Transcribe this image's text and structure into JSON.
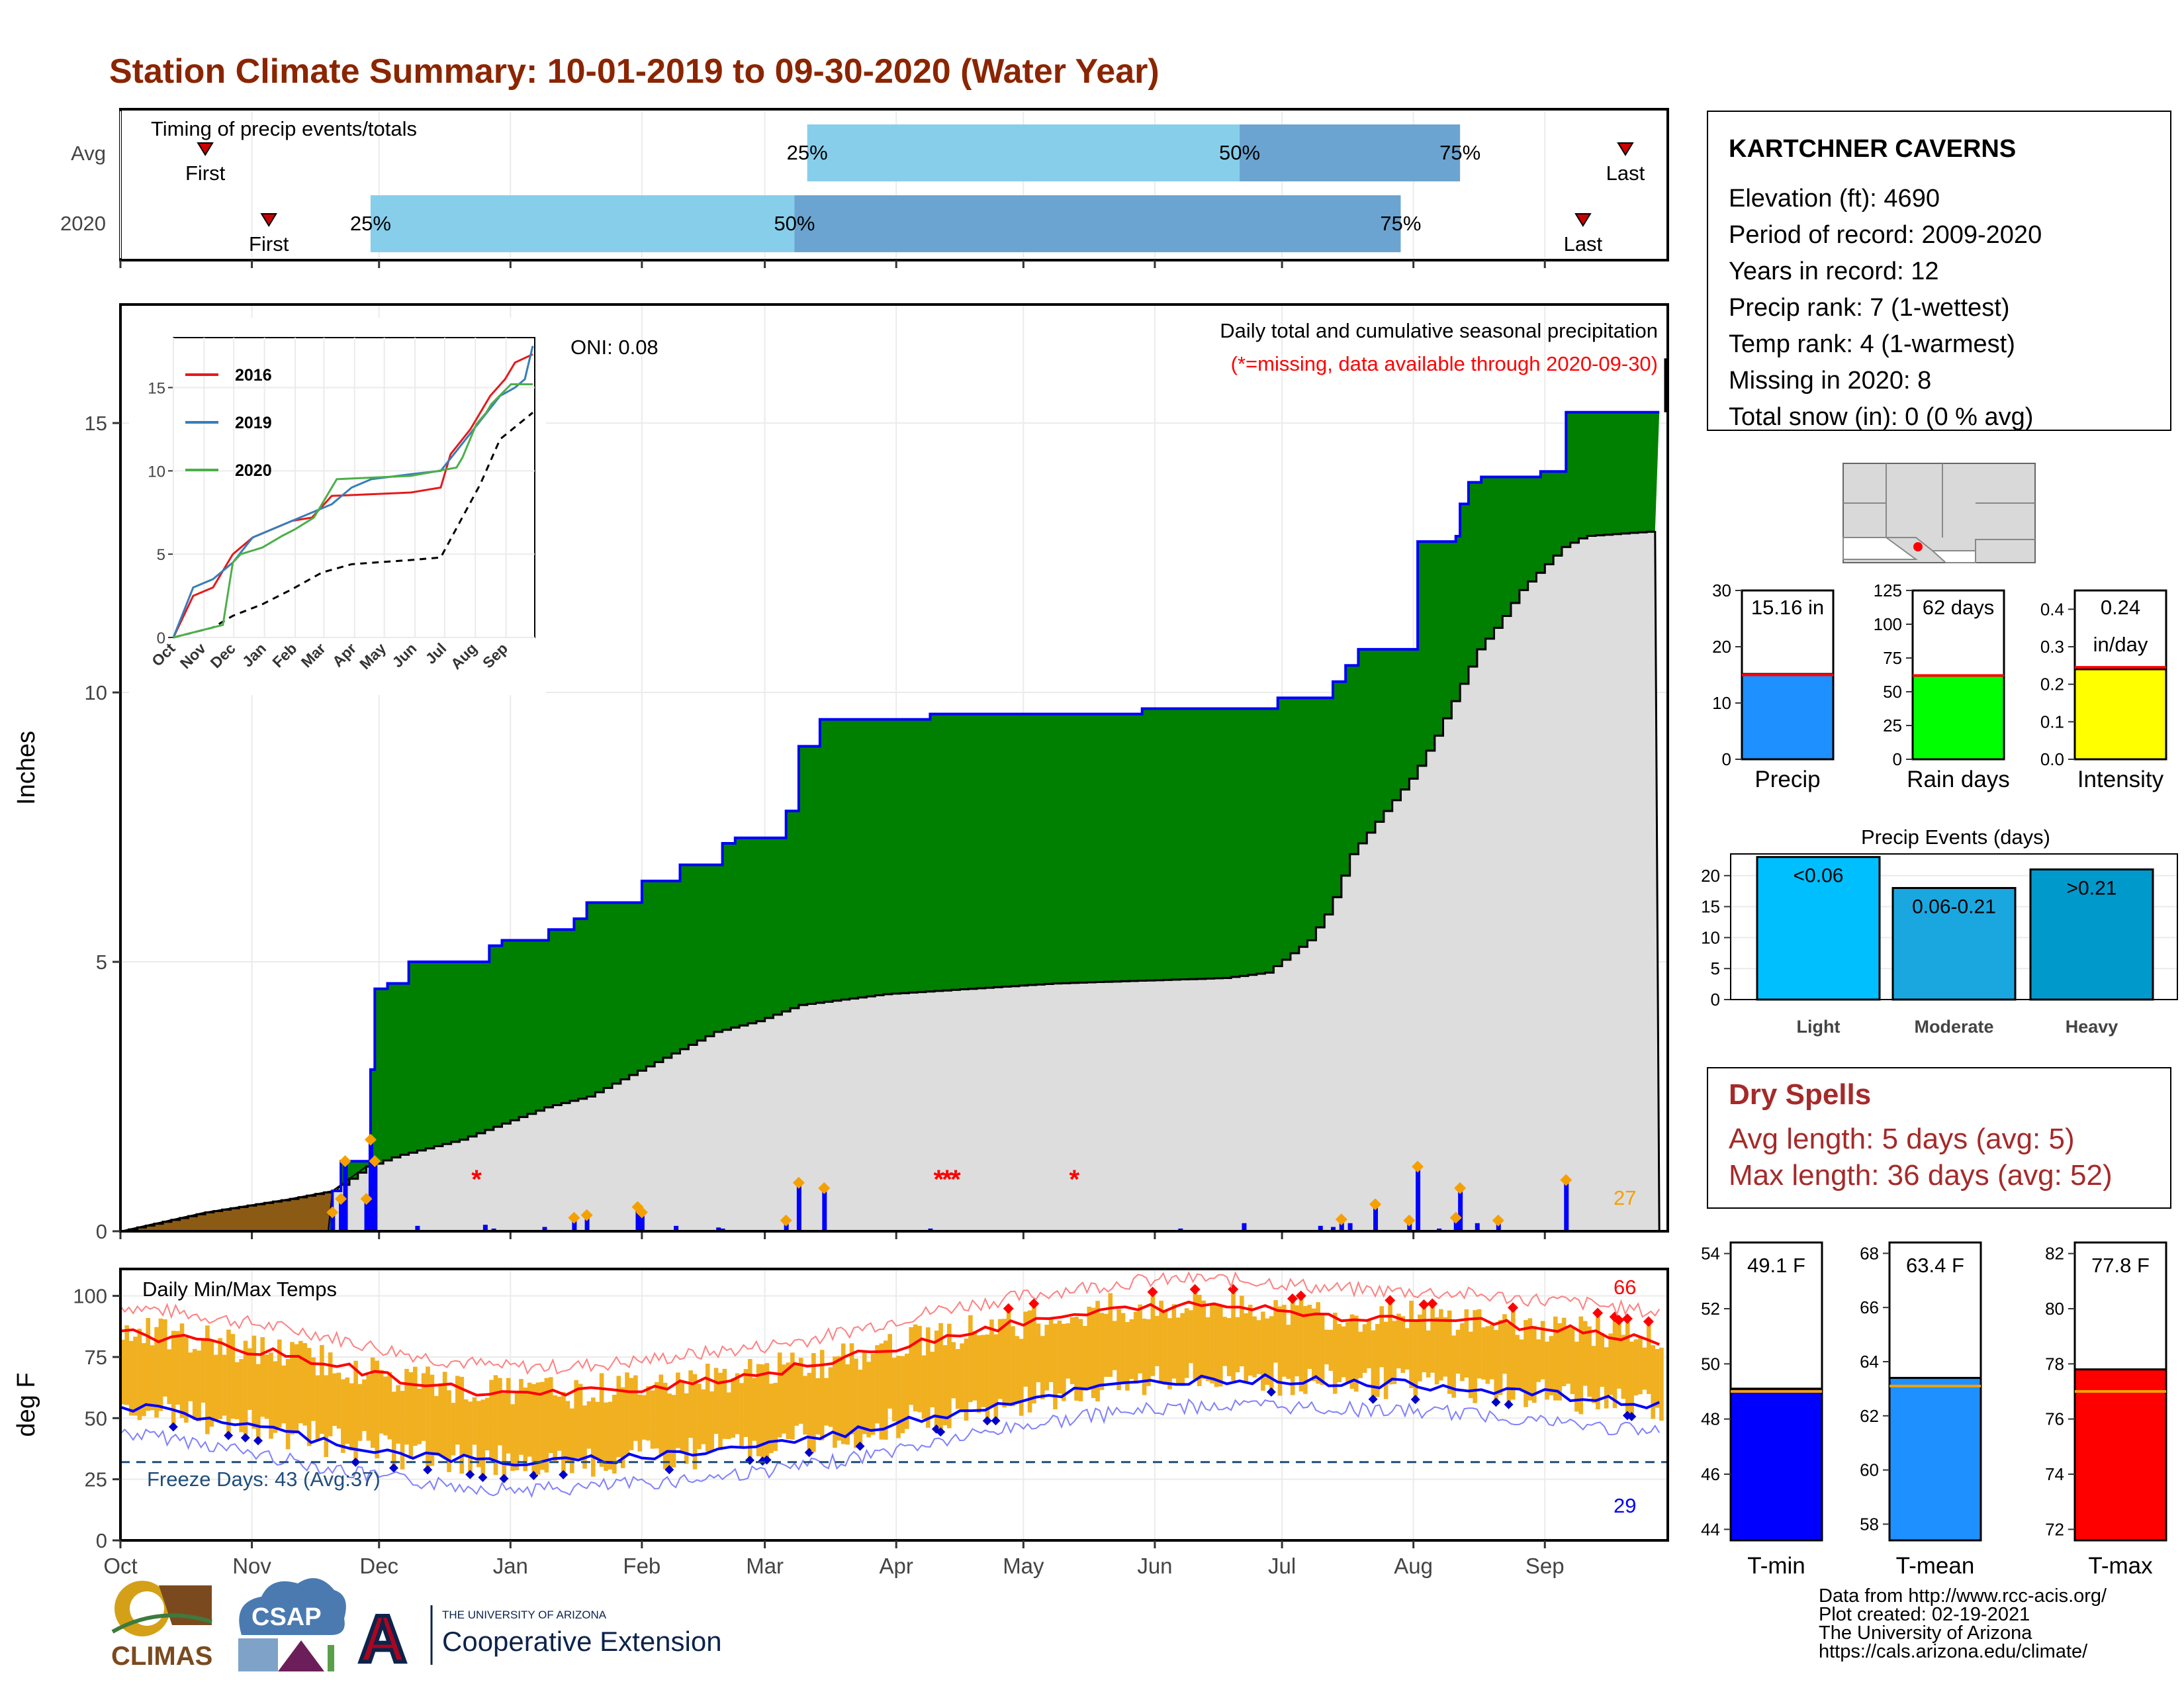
{
  "title": "Station Climate Summary: 10-01-2019 to 09-30-2020 (Water Year)",
  "colors": {
    "title": "#8B2500",
    "green": "#008000",
    "brown": "#8B5A14",
    "blue": "#0000FF",
    "orange": "#F5A000",
    "lightblue": "#87CEEB",
    "midblue": "#6BA4D0",
    "red": "#FF0000",
    "gray": "#DDDDDD",
    "darkred": "#A52A2A"
  },
  "station": {
    "name": "KARTCHNER CAVERNS",
    "lines": [
      "Elevation (ft): 4690",
      "Period of record: 2009-2020",
      "Years in record: 12",
      "Precip rank: 7 (1-wettest)",
      "Temp rank: 4 (1-warmest)",
      "Missing in 2020: 8",
      "Total snow (in): 0 (0 % avg)"
    ]
  },
  "timing": {
    "title": "Timing of precip events/totals",
    "rows": [
      "Avg",
      "2020"
    ],
    "first_label": "First",
    "last_label": "Last",
    "avg": {
      "first_day": 20,
      "last_day": 355,
      "q25_day": 162,
      "q50_day": 264,
      "q75_day": 316
    },
    "y2020": {
      "first_day": 35,
      "last_day": 345,
      "q25_day": 59,
      "q50_day": 159,
      "q75_day": 302
    },
    "q_labels": [
      "25%",
      "50%",
      "75%"
    ]
  },
  "months": [
    "Oct",
    "Nov",
    "Dec",
    "Jan",
    "Feb",
    "Mar",
    "Apr",
    "May",
    "Jun",
    "Jul",
    "Aug",
    "Sep"
  ],
  "month_start_days": [
    0,
    31,
    61,
    92,
    123,
    152,
    183,
    213,
    244,
    274,
    305,
    336
  ],
  "precip": {
    "ylabel": "Inches",
    "yticks": [
      0,
      5,
      10,
      15
    ],
    "ymax": 17.2,
    "header": "Daily total and cumulative seasonal precipitation",
    "missing_note": "(*=missing, data available through 2020-09-30)",
    "oni": "ONI: 0.08",
    "count_label": "27",
    "cum_2020": [
      [
        0,
        0
      ],
      [
        50,
        0.75
      ],
      [
        52,
        1.3
      ],
      [
        57,
        1.3
      ],
      [
        59,
        3.0
      ],
      [
        60,
        4.5
      ],
      [
        63,
        4.6
      ],
      [
        67,
        4.6
      ],
      [
        68,
        5.0
      ],
      [
        86,
        5.0
      ],
      [
        87,
        5.3
      ],
      [
        90,
        5.4
      ],
      [
        100,
        5.4
      ],
      [
        101,
        5.6
      ],
      [
        106,
        5.6
      ],
      [
        107,
        5.8
      ],
      [
        110,
        6.1
      ],
      [
        122,
        6.1
      ],
      [
        123,
        6.5
      ],
      [
        131,
        6.5
      ],
      [
        132,
        6.8
      ],
      [
        141,
        6.8
      ],
      [
        142,
        7.2
      ],
      [
        144,
        7.2
      ],
      [
        145,
        7.3
      ],
      [
        156,
        7.3
      ],
      [
        157,
        7.8
      ],
      [
        159,
        7.8
      ],
      [
        160,
        9.0
      ],
      [
        163,
        9.0
      ],
      [
        165,
        9.5
      ],
      [
        190,
        9.5
      ],
      [
        191,
        9.6
      ],
      [
        240,
        9.6
      ],
      [
        241,
        9.7
      ],
      [
        272,
        9.7
      ],
      [
        273,
        9.9
      ],
      [
        285,
        9.9
      ],
      [
        286,
        10.2
      ],
      [
        289,
        10.5
      ],
      [
        292,
        10.8
      ],
      [
        305,
        10.8
      ],
      [
        306,
        12.8
      ],
      [
        315,
        12.9
      ],
      [
        316,
        13.5
      ],
      [
        318,
        13.9
      ],
      [
        321,
        14.0
      ],
      [
        335,
        14.1
      ],
      [
        340,
        14.1
      ],
      [
        341,
        15.2
      ],
      [
        363,
        15.2
      ]
    ],
    "cum_avg": [
      [
        0,
        0
      ],
      [
        20,
        0.35
      ],
      [
        40,
        0.6
      ],
      [
        50,
        0.75
      ],
      [
        58,
        1.2
      ],
      [
        65,
        1.4
      ],
      [
        80,
        1.7
      ],
      [
        90,
        2.0
      ],
      [
        100,
        2.3
      ],
      [
        110,
        2.5
      ],
      [
        120,
        2.9
      ],
      [
        130,
        3.3
      ],
      [
        140,
        3.7
      ],
      [
        150,
        3.9
      ],
      [
        160,
        4.2
      ],
      [
        170,
        4.3
      ],
      [
        180,
        4.4
      ],
      [
        200,
        4.5
      ],
      [
        220,
        4.6
      ],
      [
        240,
        4.65
      ],
      [
        260,
        4.7
      ],
      [
        270,
        4.8
      ],
      [
        275,
        5.1
      ],
      [
        280,
        5.4
      ],
      [
        285,
        6.0
      ],
      [
        290,
        7.0
      ],
      [
        295,
        7.5
      ],
      [
        300,
        8.0
      ],
      [
        305,
        8.5
      ],
      [
        310,
        9.2
      ],
      [
        315,
        10.0
      ],
      [
        320,
        10.8
      ],
      [
        325,
        11.3
      ],
      [
        330,
        11.9
      ],
      [
        335,
        12.3
      ],
      [
        340,
        12.7
      ],
      [
        345,
        12.9
      ],
      [
        363,
        13.0
      ]
    ],
    "daily": [
      [
        50,
        0.35
      ],
      [
        52,
        0.6
      ],
      [
        53,
        1.3
      ],
      [
        58,
        0.6
      ],
      [
        59,
        1.7
      ],
      [
        60,
        1.3
      ],
      [
        70,
        0.1
      ],
      [
        86,
        0.12
      ],
      [
        88,
        0.05
      ],
      [
        100,
        0.08
      ],
      [
        107,
        0.25
      ],
      [
        110,
        0.3
      ],
      [
        122,
        0.45
      ],
      [
        123,
        0.35
      ],
      [
        131,
        0.1
      ],
      [
        141,
        0.07
      ],
      [
        142,
        0.05
      ],
      [
        157,
        0.2
      ],
      [
        160,
        0.9
      ],
      [
        166,
        0.8
      ],
      [
        191,
        0.05
      ],
      [
        250,
        0.05
      ],
      [
        265,
        0.15
      ],
      [
        283,
        0.1
      ],
      [
        286,
        0.08
      ],
      [
        288,
        0.22
      ],
      [
        290,
        0.15
      ],
      [
        296,
        0.5
      ],
      [
        304,
        0.2
      ],
      [
        306,
        1.2
      ],
      [
        311,
        0.05
      ],
      [
        315,
        0.25
      ],
      [
        316,
        0.8
      ],
      [
        320,
        0.15
      ],
      [
        325,
        0.2
      ],
      [
        341,
        0.95
      ]
    ],
    "missing_days": [
      84,
      193,
      195,
      197,
      225
    ]
  },
  "inset": {
    "yticks": [
      0,
      5,
      10,
      15
    ],
    "months": [
      "Oct",
      "Nov",
      "Dec",
      "Jan",
      "Feb",
      "Mar",
      "Apr",
      "May",
      "Jun",
      "Jul",
      "Aug",
      "Sep"
    ],
    "legend": [
      {
        "name": "2016",
        "color": "#E41A1C"
      },
      {
        "name": "2019",
        "color": "#377EB8"
      },
      {
        "name": "2020",
        "color": "#4DAF4A"
      }
    ],
    "series": {
      "2016": [
        [
          0,
          0
        ],
        [
          20,
          2.5
        ],
        [
          40,
          3
        ],
        [
          60,
          5
        ],
        [
          80,
          6
        ],
        [
          100,
          6.5
        ],
        [
          120,
          7
        ],
        [
          140,
          7.2
        ],
        [
          160,
          8.5
        ],
        [
          200,
          8.6
        ],
        [
          240,
          8.7
        ],
        [
          270,
          9
        ],
        [
          280,
          11
        ],
        [
          300,
          12.5
        ],
        [
          320,
          14.5
        ],
        [
          335,
          15.5
        ],
        [
          345,
          16.5
        ],
        [
          363,
          17
        ]
      ],
      "2019": [
        [
          0,
          0
        ],
        [
          20,
          3
        ],
        [
          40,
          3.5
        ],
        [
          60,
          4.5
        ],
        [
          80,
          6
        ],
        [
          100,
          6.5
        ],
        [
          120,
          7
        ],
        [
          140,
          7.5
        ],
        [
          160,
          8
        ],
        [
          180,
          9
        ],
        [
          200,
          9.5
        ],
        [
          240,
          9.8
        ],
        [
          270,
          10
        ],
        [
          290,
          11.5
        ],
        [
          310,
          13
        ],
        [
          330,
          14.5
        ],
        [
          345,
          15
        ],
        [
          355,
          15.5
        ],
        [
          363,
          17.5
        ]
      ],
      "2020": [
        [
          0,
          0
        ],
        [
          50,
          0.75
        ],
        [
          60,
          4.5
        ],
        [
          68,
          5
        ],
        [
          90,
          5.4
        ],
        [
          110,
          6.1
        ],
        [
          123,
          6.5
        ],
        [
          142,
          7.2
        ],
        [
          160,
          9
        ],
        [
          165,
          9.5
        ],
        [
          240,
          9.7
        ],
        [
          286,
          10.2
        ],
        [
          292,
          10.8
        ],
        [
          306,
          12.8
        ],
        [
          316,
          13.5
        ],
        [
          321,
          14
        ],
        [
          341,
          15.2
        ],
        [
          363,
          15.2
        ]
      ],
      "avg": [
        [
          0,
          0
        ],
        [
          40,
          0.6
        ],
        [
          60,
          1.3
        ],
        [
          90,
          2
        ],
        [
          120,
          2.9
        ],
        [
          150,
          3.9
        ],
        [
          180,
          4.4
        ],
        [
          240,
          4.65
        ],
        [
          270,
          4.8
        ],
        [
          290,
          7
        ],
        [
          310,
          9.2
        ],
        [
          330,
          11.9
        ],
        [
          363,
          13.5
        ]
      ]
    }
  },
  "temps": {
    "title": "Daily Min/Max Temps",
    "ylabel": "deg F",
    "yticks": [
      0,
      25,
      50,
      75,
      100
    ],
    "freeze_label": "Freeze Days: 43 (Avg:37)",
    "max_count": "66",
    "min_count": "29",
    "freeze_line": 32,
    "avg_max": [
      [
        0,
        85
      ],
      [
        15,
        82
      ],
      [
        30,
        78
      ],
      [
        45,
        74
      ],
      [
        60,
        68
      ],
      [
        75,
        63
      ],
      [
        90,
        60
      ],
      [
        105,
        60
      ],
      [
        120,
        62
      ],
      [
        135,
        65
      ],
      [
        150,
        68
      ],
      [
        165,
        72
      ],
      [
        180,
        78
      ],
      [
        195,
        84
      ],
      [
        210,
        88
      ],
      [
        225,
        92
      ],
      [
        240,
        95
      ],
      [
        255,
        96
      ],
      [
        270,
        95
      ],
      [
        285,
        92
      ],
      [
        300,
        91
      ],
      [
        315,
        90
      ],
      [
        330,
        88
      ],
      [
        345,
        86
      ],
      [
        363,
        82
      ]
    ],
    "avg_min": [
      [
        0,
        55
      ],
      [
        15,
        52
      ],
      [
        30,
        47
      ],
      [
        45,
        42
      ],
      [
        60,
        37
      ],
      [
        75,
        34
      ],
      [
        90,
        32
      ],
      [
        105,
        32
      ],
      [
        120,
        34
      ],
      [
        135,
        36
      ],
      [
        150,
        39
      ],
      [
        165,
        42
      ],
      [
        180,
        47
      ],
      [
        195,
        52
      ],
      [
        210,
        57
      ],
      [
        225,
        61
      ],
      [
        240,
        64
      ],
      [
        255,
        66
      ],
      [
        270,
        66
      ],
      [
        285,
        65
      ],
      [
        300,
        64
      ],
      [
        315,
        63
      ],
      [
        330,
        61
      ],
      [
        345,
        58
      ],
      [
        363,
        55
      ]
    ]
  },
  "summary_bars": [
    {
      "name": "Precip",
      "value_label": "15.16 in",
      "value": 15.16,
      "avg": 15.0,
      "ymin": 0,
      "ymax": 30,
      "ticks": [
        0,
        10,
        20,
        30
      ],
      "color": "#1E90FF",
      "avg_color": "#FF0000"
    },
    {
      "name": "Rain days",
      "value_label": "62 days",
      "value": 62,
      "avg": 62,
      "ymin": 0,
      "ymax": 125,
      "ticks": [
        0,
        25,
        50,
        75,
        100,
        125
      ],
      "color": "#00FF00",
      "avg_color": "#FF0000"
    },
    {
      "name": "Intensity",
      "value_label": "0.24",
      "value_label2": "in/day",
      "value": 0.24,
      "avg": 0.245,
      "ymin": 0,
      "ymax": 0.45,
      "ticks": [
        0.0,
        0.1,
        0.2,
        0.3,
        0.4
      ],
      "tick_labels": [
        "0.0",
        "0.1",
        "0.2",
        "0.3",
        "0.4"
      ],
      "color": "#FFFF00",
      "avg_color": "#FF0000"
    }
  ],
  "events": {
    "title": "Precip Events (days)",
    "ticks": [
      0,
      5,
      10,
      15,
      20
    ],
    "ymax": 23.5,
    "bars": [
      {
        "name": "Light",
        "label": "<0.06",
        "value": 23,
        "color": "#00BFFF"
      },
      {
        "name": "Moderate",
        "label": "0.06-0.21",
        "value": 18,
        "color": "#1AA7E0"
      },
      {
        "name": "Heavy",
        "label": ">0.21",
        "value": 21,
        "color": "#0099CC"
      }
    ]
  },
  "dry_spells": {
    "title": "Dry Spells",
    "lines": [
      "Avg length: 5 days (avg: 5)",
      "Max length: 36 days (avg: 52)"
    ]
  },
  "temp_bars": [
    {
      "name": "T-min",
      "value_label": "49.1 F",
      "value": 49.1,
      "avg": 49.0,
      "ymin": 43.6,
      "ymax": 54.4,
      "ticks": [
        44,
        46,
        48,
        50,
        52,
        54
      ],
      "color": "#0000FF"
    },
    {
      "name": "T-mean",
      "value_label": "63.4 F",
      "value": 63.4,
      "avg": 63.1,
      "ymin": 57.4,
      "ymax": 68.4,
      "ticks": [
        58,
        60,
        62,
        64,
        66,
        68
      ],
      "color": "#1E90FF"
    },
    {
      "name": "T-max",
      "value_label": "77.8 F",
      "value": 77.8,
      "avg": 77.0,
      "ymin": 71.6,
      "ymax": 82.4,
      "ticks": [
        72,
        74,
        76,
        78,
        80,
        82
      ],
      "color": "#FF0000"
    }
  ],
  "footer": {
    "lines": [
      "Data from http://www.rcc-acis.org/",
      "Plot created: 02-19-2021",
      "The University of Arizona",
      "https://cals.arizona.edu/climate/"
    ],
    "logo_climas": "CLIMAS",
    "logo_csap": "CSAP",
    "ua_line1": "THE UNIVERSITY OF ARIZONA",
    "ua_line2": "Cooperative Extension",
    "ua_letter": "A"
  }
}
